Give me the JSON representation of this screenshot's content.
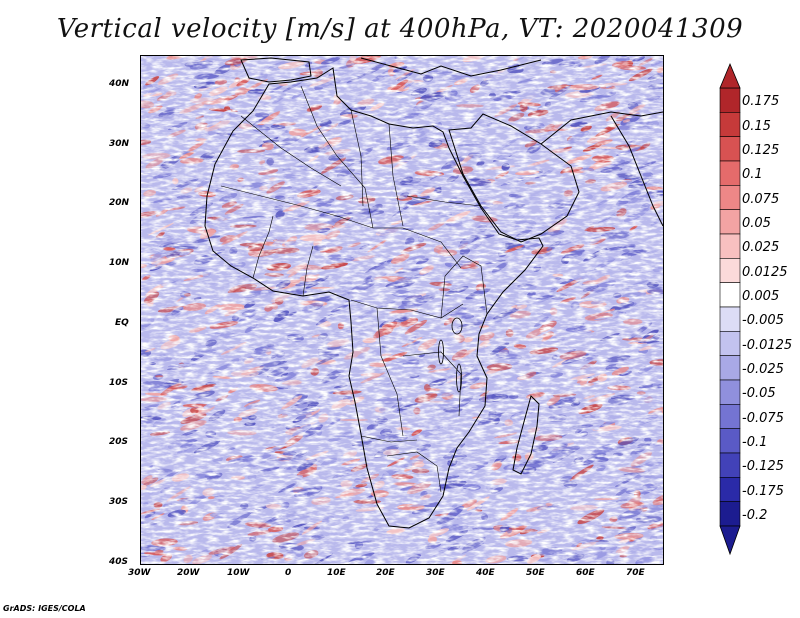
{
  "title": "Vertical velocity [m/s] at 400hPa, VT: 2020041309",
  "footer": "GrADS: IGES/COLA",
  "map": {
    "variable": "Vertical velocity",
    "units": "m/s",
    "level": "400hPa",
    "valid_time": "2020041309",
    "lon_range": [
      -30,
      75
    ],
    "lat_range": [
      -40,
      45
    ],
    "lon_ticks": [
      "30W",
      "20W",
      "10W",
      "0",
      "10E",
      "20E",
      "30E",
      "40E",
      "50E",
      "60E",
      "70E"
    ],
    "lat_ticks": [
      "40N",
      "30N",
      "20N",
      "10N",
      "EQ",
      "10S",
      "20S",
      "30S",
      "40S"
    ],
    "region": "Africa"
  },
  "colorbar": {
    "labels": [
      "0.175",
      "0.15",
      "0.125",
      "0.1",
      "0.075",
      "0.05",
      "0.025",
      "0.0125",
      "0.005",
      "-0.005",
      "-0.0125",
      "-0.025",
      "-0.05",
      "-0.075",
      "-0.1",
      "-0.125",
      "-0.175",
      "-0.2"
    ],
    "colors": [
      "#b0262a",
      "#c63a3a",
      "#d85252",
      "#e56b6b",
      "#ee8787",
      "#f3a3a3",
      "#f8c0c0",
      "#fbdada",
      "#ffffff",
      "#dcdcf6",
      "#c3c3ef",
      "#a9a9e6",
      "#9090dd",
      "#7474d2",
      "#5a5ac6",
      "#4242b8",
      "#2a2aa8",
      "#1c1c90"
    ]
  },
  "colors": {
    "positive": "#d83a3a",
    "negative": "#3c3cc0",
    "neutral": "#ffffff"
  }
}
